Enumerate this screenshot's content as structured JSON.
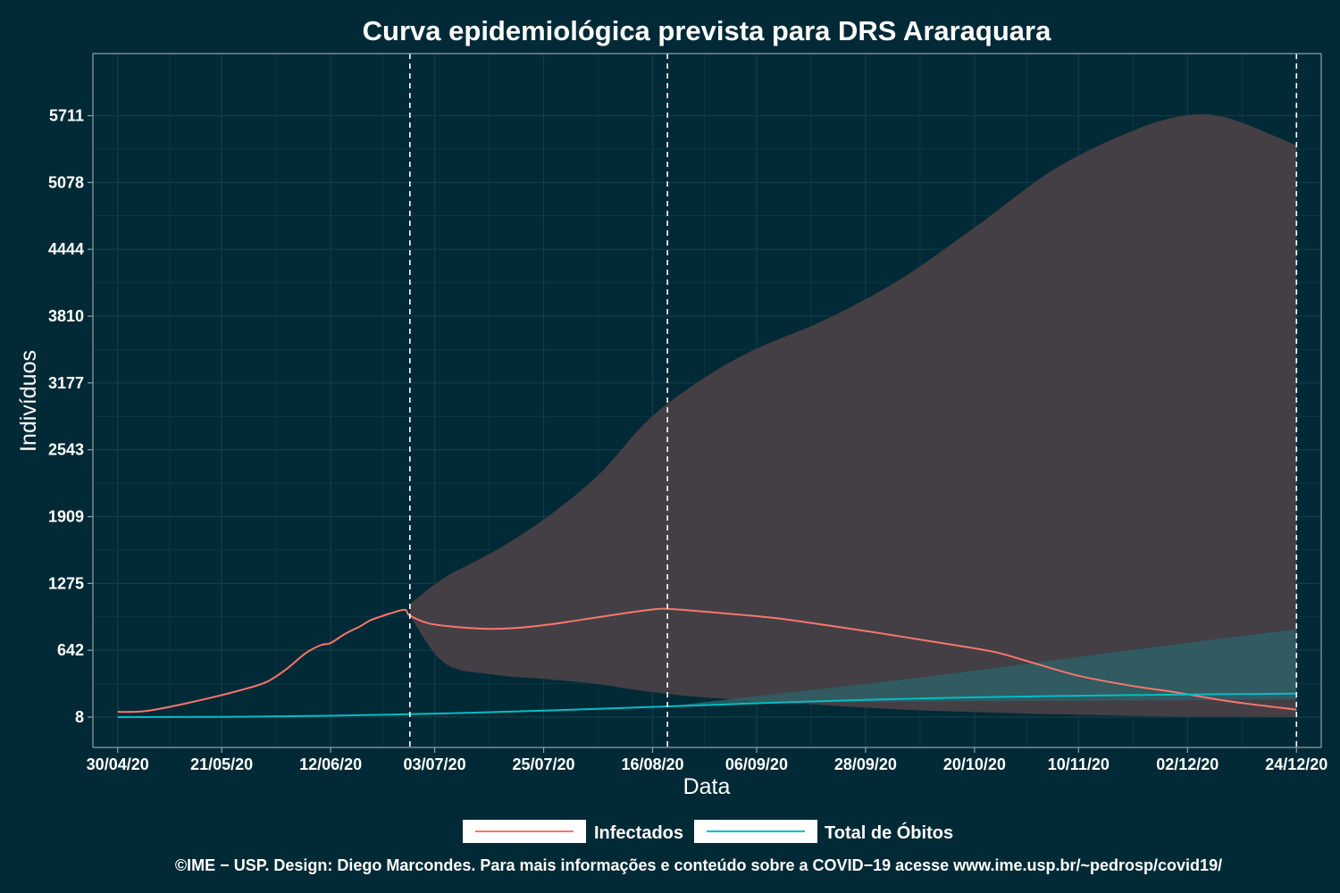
{
  "chart_data": {
    "type": "line",
    "title": "Curva epidemiológica prevista para DRS Araraquara",
    "xlabel": "Data",
    "ylabel": "Indivíduos",
    "x_ticks": [
      "30/04/20",
      "21/05/20",
      "12/06/20",
      "03/07/20",
      "25/07/20",
      "16/08/20",
      "06/09/20",
      "28/09/20",
      "20/10/20",
      "10/11/20",
      "02/12/20",
      "24/12/20"
    ],
    "y_ticks": [
      8,
      642,
      1275,
      1909,
      2543,
      3177,
      3810,
      4444,
      5078,
      5711
    ],
    "xlim": [
      "2020-04-25",
      "2020-12-29"
    ],
    "ylim": [
      -280,
      6300
    ],
    "grid": true,
    "legend_position": "bottom",
    "vertical_markers": [
      "2020-06-28",
      "2020-08-19",
      "2020-12-24"
    ],
    "series": [
      {
        "name": "Infectados",
        "color": "#f8766d",
        "points": [
          [
            "2020-04-30",
            57
          ],
          [
            "2020-05-05",
            62
          ],
          [
            "2020-05-10",
            100
          ],
          [
            "2020-05-15",
            150
          ],
          [
            "2020-05-20",
            205
          ],
          [
            "2020-05-25",
            265
          ],
          [
            "2020-05-30",
            340
          ],
          [
            "2020-06-03",
            460
          ],
          [
            "2020-06-07",
            615
          ],
          [
            "2020-06-10",
            690
          ],
          [
            "2020-06-12",
            710
          ],
          [
            "2020-06-15",
            800
          ],
          [
            "2020-06-18",
            870
          ],
          [
            "2020-06-20",
            925
          ],
          [
            "2020-06-22",
            960
          ],
          [
            "2020-06-24",
            990
          ],
          [
            "2020-06-27",
            1025
          ],
          [
            "2020-06-28",
            970
          ],
          [
            "2020-07-02",
            895
          ],
          [
            "2020-07-08",
            860
          ],
          [
            "2020-07-14",
            845
          ],
          [
            "2020-07-20",
            855
          ],
          [
            "2020-07-26",
            885
          ],
          [
            "2020-08-03",
            940
          ],
          [
            "2020-08-10",
            990
          ],
          [
            "2020-08-16",
            1028
          ],
          [
            "2020-08-20",
            1032
          ],
          [
            "2020-09-01",
            985
          ],
          [
            "2020-09-10",
            945
          ],
          [
            "2020-09-20",
            880
          ],
          [
            "2020-09-30",
            810
          ],
          [
            "2020-10-10",
            735
          ],
          [
            "2020-10-20",
            660
          ],
          [
            "2020-10-25",
            615
          ],
          [
            "2020-11-01",
            520
          ],
          [
            "2020-11-10",
            400
          ],
          [
            "2020-11-20",
            310
          ],
          [
            "2020-11-30",
            240
          ],
          [
            "2020-12-10",
            160
          ],
          [
            "2020-12-24",
            78
          ]
        ],
        "band": [
          [
            "2020-06-28",
            970,
            1080
          ],
          [
            "2020-07-05",
            520,
            1330
          ],
          [
            "2020-07-15",
            410,
            1580
          ],
          [
            "2020-07-25",
            370,
            1880
          ],
          [
            "2020-08-05",
            320,
            2300
          ],
          [
            "2020-08-15",
            250,
            2820
          ],
          [
            "2020-08-25",
            200,
            3180
          ],
          [
            "2020-09-05",
            165,
            3480
          ],
          [
            "2020-09-20",
            120,
            3780
          ],
          [
            "2020-10-05",
            80,
            4160
          ],
          [
            "2020-10-20",
            55,
            4650
          ],
          [
            "2020-11-05",
            35,
            5200
          ],
          [
            "2020-11-20",
            20,
            5550
          ],
          [
            "2020-12-01",
            12,
            5710
          ],
          [
            "2020-12-10",
            10,
            5690
          ],
          [
            "2020-12-24",
            8,
            5430
          ]
        ]
      },
      {
        "name": "Total de Óbitos",
        "color": "#00bfc4",
        "points": [
          [
            "2020-04-30",
            8
          ],
          [
            "2020-05-20",
            10
          ],
          [
            "2020-06-10",
            20
          ],
          [
            "2020-06-28",
            35
          ],
          [
            "2020-07-15",
            55
          ],
          [
            "2020-08-01",
            80
          ],
          [
            "2020-08-20",
            110
          ],
          [
            "2020-09-10",
            145
          ],
          [
            "2020-10-01",
            175
          ],
          [
            "2020-10-20",
            195
          ],
          [
            "2020-11-10",
            210
          ],
          [
            "2020-12-01",
            222
          ],
          [
            "2020-12-24",
            230
          ]
        ],
        "band": [
          [
            "2020-08-19",
            110,
            110
          ],
          [
            "2020-09-01",
            140,
            180
          ],
          [
            "2020-09-20",
            150,
            280
          ],
          [
            "2020-10-10",
            155,
            390
          ],
          [
            "2020-10-30",
            160,
            510
          ],
          [
            "2020-11-20",
            165,
            640
          ],
          [
            "2020-12-10",
            170,
            760
          ],
          [
            "2020-12-24",
            175,
            840
          ]
        ]
      }
    ]
  },
  "footer": {
    "credits": "©IME − USP. Design: Diego Marcondes. Para mais informações e conteúdo sobre a COVID−19 acesse www.ime.usp.br/~pedrosp/covid19/"
  },
  "colors": {
    "background": "#022a36",
    "band": "#433f45",
    "band_obitos": "#2e5f66",
    "text": "#ffffff",
    "axis": "#8aa2a8",
    "grid": "#143d48"
  }
}
